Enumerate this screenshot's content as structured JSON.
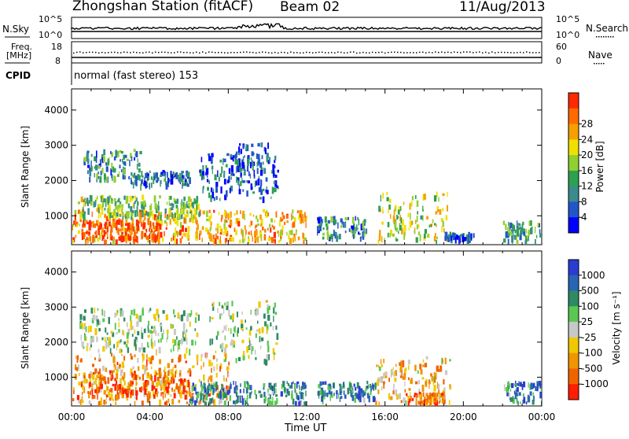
{
  "header": {
    "station": "Zhongshan Station (fitACF)",
    "beam": "Beam 02",
    "date": "11/Aug/2013"
  },
  "summary": {
    "nsky_label": "N.Sky",
    "nsearch_label": "N.Search",
    "freq_label_1": "Freq.",
    "freq_label_2": "[MHz]",
    "nave_label": "Nave",
    "cpid_label": "CPID",
    "cpid_value": "normal (fast stereo) 153",
    "left_ticks_top": [
      "10^5",
      "10^0"
    ],
    "right_ticks_top": [
      "10^5",
      "10^0"
    ],
    "freq_ticks": [
      "18",
      "8"
    ],
    "nave_ticks": [
      "60",
      "0"
    ]
  },
  "chart_data": [
    {
      "type": "heatmap",
      "name": "power-panel",
      "ylabel": "Slant Range [km]",
      "xlabel": "",
      "ylim": [
        180,
        4600
      ],
      "xlim": [
        0,
        24
      ],
      "yticks": [
        1000,
        2000,
        3000,
        4000
      ],
      "colorbar": {
        "label": "Power [dB]",
        "ticks": [
          "4",
          "8",
          "12",
          "16",
          "20",
          "24",
          "28"
        ],
        "colors": [
          "#0000ff",
          "#2256c8",
          "#3a8c8c",
          "#2ea050",
          "#90d030",
          "#f0e000",
          "#f4a000",
          "#ff6a00",
          "#ff2a00"
        ]
      },
      "patches": [
        {
          "t0": 0.0,
          "t1": 12.0,
          "r0": 300,
          "r1": 1200,
          "level": 0.72
        },
        {
          "t0": 0.5,
          "t1": 4.5,
          "r0": 400,
          "r1": 900,
          "level": 0.9
        },
        {
          "t0": 0.3,
          "t1": 6.5,
          "r0": 1000,
          "r1": 1600,
          "level": 0.45
        },
        {
          "t0": 0.6,
          "t1": 3.5,
          "r0": 2100,
          "r1": 2900,
          "level": 0.3
        },
        {
          "t0": 3.0,
          "t1": 6.0,
          "r0": 1900,
          "r1": 2300,
          "level": 0.25
        },
        {
          "t0": 6.5,
          "t1": 10.5,
          "r0": 1500,
          "r1": 2800,
          "level": 0.22
        },
        {
          "t0": 8.0,
          "t1": 10.0,
          "r0": 2000,
          "r1": 3100,
          "level": 0.18
        },
        {
          "t0": 12.5,
          "t1": 15.0,
          "r0": 400,
          "r1": 1000,
          "level": 0.3
        },
        {
          "t0": 15.6,
          "t1": 19.2,
          "r0": 300,
          "r1": 1700,
          "level": 0.55
        },
        {
          "t0": 19.0,
          "t1": 20.5,
          "r0": 350,
          "r1": 550,
          "level": 0.2
        },
        {
          "t0": 22.0,
          "t1": 24.0,
          "r0": 300,
          "r1": 900,
          "level": 0.35
        }
      ]
    },
    {
      "type": "heatmap",
      "name": "velocity-panel",
      "ylabel": "Slant Range [km]",
      "xlabel": "Time UT",
      "ylim": [
        180,
        4600
      ],
      "xlim": [
        0,
        24
      ],
      "yticks": [
        1000,
        2000,
        3000,
        4000
      ],
      "xticks": [
        "00:00",
        "04:00",
        "08:00",
        "12:00",
        "16:00",
        "20:00",
        "00:00"
      ],
      "colorbar": {
        "label": "Velocity [m s⁻¹]",
        "ticks": [
          "1000",
          "500",
          "100",
          "25",
          "-25",
          "-100",
          "-500",
          "-1000"
        ],
        "colors": [
          "#2a3cd2",
          "#2a64b4",
          "#2e8a64",
          "#5ac850",
          "#c8c8c8",
          "#f0c800",
          "#f09600",
          "#f06400",
          "#ff1e00"
        ]
      },
      "patches": [
        {
          "t0": 0.0,
          "t1": 8.0,
          "r0": 300,
          "r1": 1700,
          "level": 0.7
        },
        {
          "t0": 0.5,
          "t1": 6.0,
          "r0": 500,
          "r1": 1200,
          "level": 0.8
        },
        {
          "t0": 0.4,
          "t1": 6.5,
          "r0": 1800,
          "r1": 3000,
          "level": 0.45
        },
        {
          "t0": 7.0,
          "t1": 10.5,
          "r0": 1500,
          "r1": 3200,
          "level": 0.45
        },
        {
          "t0": 6.0,
          "t1": 12.0,
          "r0": 300,
          "r1": 900,
          "level": 0.25
        },
        {
          "t0": 12.5,
          "t1": 15.5,
          "r0": 400,
          "r1": 900,
          "level": 0.25
        },
        {
          "t0": 15.5,
          "t1": 19.3,
          "r0": 300,
          "r1": 1600,
          "level": 0.65
        },
        {
          "t0": 17.0,
          "t1": 19.0,
          "r0": 300,
          "r1": 600,
          "level": 0.85
        },
        {
          "t0": 22.0,
          "t1": 24.0,
          "r0": 300,
          "r1": 900,
          "level": 0.25
        }
      ]
    }
  ]
}
